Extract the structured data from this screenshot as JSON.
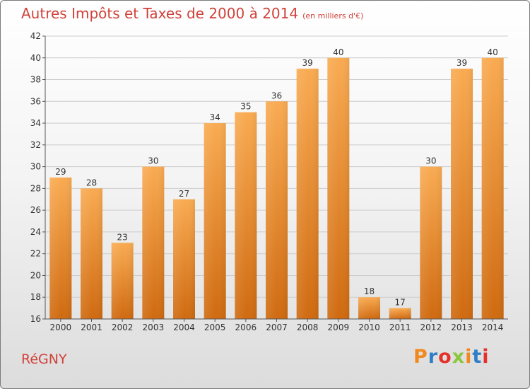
{
  "header": {
    "title": "Autres Impôts et Taxes de 2000 à 2014",
    "unit": "(en milliers d'€)"
  },
  "footer": {
    "town": "RéGNY",
    "brand_letters": [
      "P",
      "r",
      "o",
      "x",
      "i",
      "t",
      "i"
    ],
    "brand_colors": [
      "#f08a1e",
      "#2f7fc6",
      "#e3322b",
      "#8cc63e",
      "#f08a1e",
      "#2f7fc6",
      "#e3322b"
    ]
  },
  "chart_data": {
    "type": "bar",
    "title": "Autres Impôts et Taxes de 2000 à 2014",
    "subtitle": "(en milliers d'€)",
    "xlabel": "",
    "ylabel": "",
    "categories": [
      "2000",
      "2001",
      "2002",
      "2003",
      "2004",
      "2005",
      "2006",
      "2007",
      "2008",
      "2009",
      "2010",
      "2011",
      "2012",
      "2013",
      "2014"
    ],
    "values": [
      29,
      28,
      23,
      30,
      27,
      34,
      35,
      36,
      39,
      40,
      18,
      17,
      30,
      39,
      40
    ],
    "ylim": [
      16,
      42
    ],
    "yticks": [
      16,
      18,
      20,
      22,
      24,
      26,
      28,
      30,
      32,
      34,
      36,
      38,
      40,
      42
    ],
    "grid": true,
    "colors": {
      "bar_light": "#f9ab52",
      "bar_dark": "#cf6a10",
      "grid": "#cccccc",
      "axis_text": "#333333"
    }
  }
}
